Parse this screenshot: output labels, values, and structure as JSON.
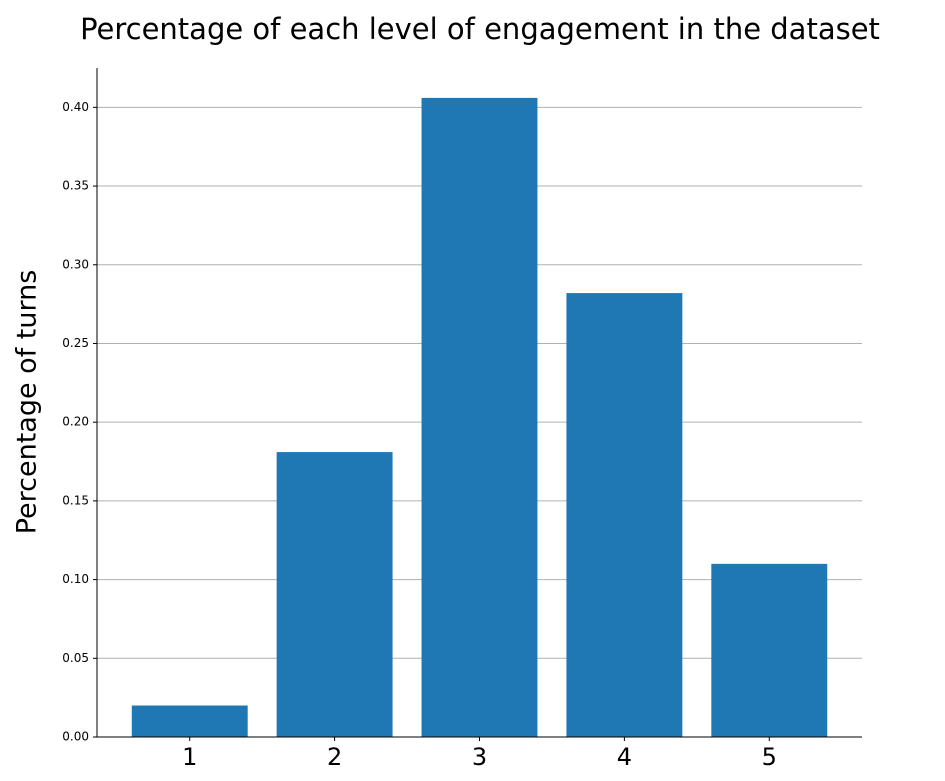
{
  "chart_data": {
    "type": "bar",
    "title": "Percentage of each level of engagement in the dataset",
    "y_label": "Percentage of turns",
    "categories": [
      "1",
      "2",
      "3",
      "4",
      "5"
    ],
    "values": [
      0.02,
      0.181,
      0.406,
      0.282,
      0.11
    ],
    "color": "#1f77b4",
    "ylim": [
      0,
      0.425
    ],
    "yticks": [
      {
        "value": 0,
        "label": "0.00"
      },
      {
        "value": 0.05,
        "label": "0.05"
      },
      {
        "value": 0.1,
        "label": "0.10"
      },
      {
        "value": 0.15,
        "label": "0.15"
      },
      {
        "value": 0.2,
        "label": "0.20"
      },
      {
        "value": 0.25,
        "label": "0.25"
      },
      {
        "value": 0.3,
        "label": "0.30"
      },
      {
        "value": 0.35,
        "label": "0.35"
      },
      {
        "value": 0.4,
        "label": "0.40"
      }
    ],
    "grid": true
  }
}
